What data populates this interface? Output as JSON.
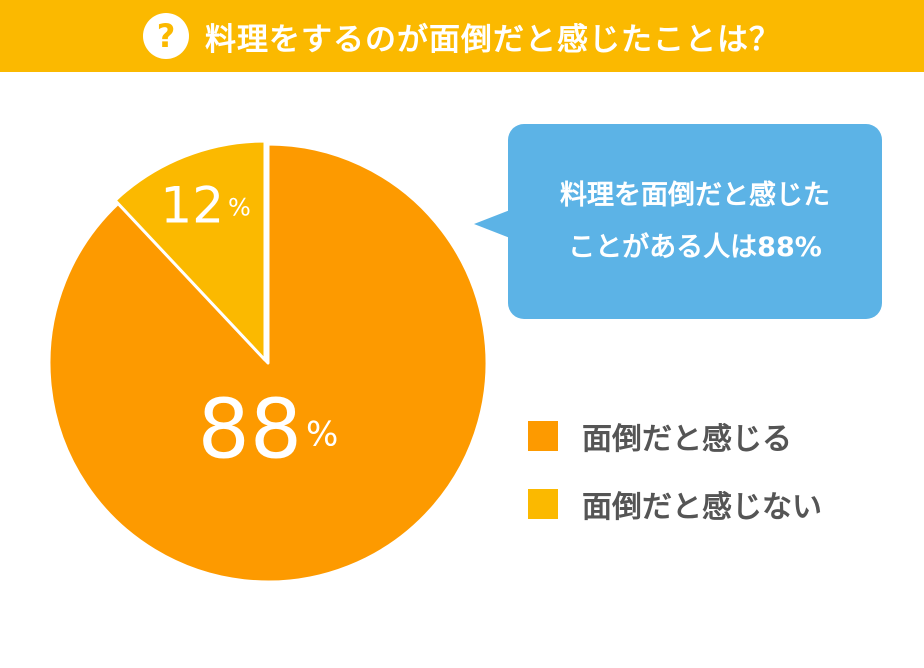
{
  "header": {
    "icon": "question-icon",
    "icon_glyph": "?",
    "title": "料理をするのが面倒だと感じたことは？"
  },
  "chart_data": {
    "type": "pie",
    "title": "料理をするのが面倒だと感じたことは？",
    "slices": [
      {
        "label": "面倒だと感じる",
        "value": 88,
        "value_label": "88",
        "unit": "%",
        "color": "#fd9a00"
      },
      {
        "label": "面倒だと感じない",
        "value": 12,
        "value_label": "12",
        "unit": "%",
        "color": "#fbb900"
      }
    ],
    "start": "12 o'clock",
    "direction": "clockwise",
    "legend_position": "right",
    "slice_border_color": "#ffffff"
  },
  "callout": {
    "line1": "料理を面倒だと感じた",
    "line2": "ことがある人は88%"
  }
}
